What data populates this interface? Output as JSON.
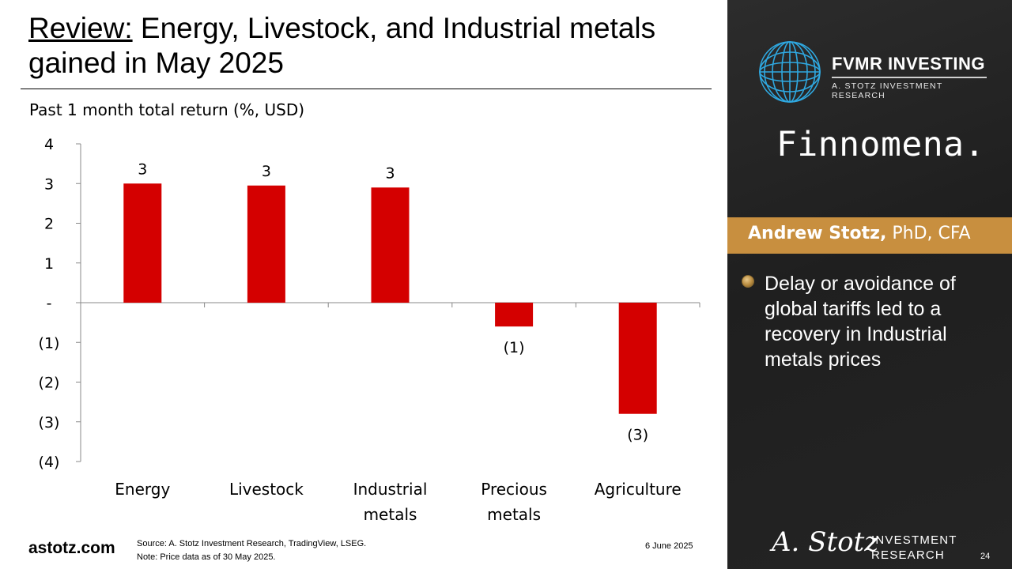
{
  "slide": {
    "title_lead": "Review:",
    "title_rest": " Energy, Livestock, and Industrial metals gained in May 2025",
    "site": "astotz.com",
    "source": "Source: A. Stotz Investment Research, TradingView, LSEG.",
    "note": "Note: Price data as of 30 May 2025.",
    "date": "6 June 2025",
    "page_number": "24"
  },
  "sidebar": {
    "brand_name": "FVMR INVESTING",
    "brand_sub": "A. STOTZ INVESTMENT RESEARCH",
    "partner": "Finnomena.",
    "author_name": "Andrew Stotz,",
    "author_title": " PhD, CFA",
    "bullet": "Delay or avoidance of global tariffs led to a recovery in Industrial metals prices",
    "signature": "A. Stotz",
    "ir_line1": "INVESTMENT",
    "ir_line2": "RESEARCH"
  },
  "colors": {
    "bar": "#d40000",
    "accent": "#c88f3f",
    "panel_bg": "#252525"
  },
  "chart_data": {
    "type": "bar",
    "title": "Past 1 month total return (%, USD)",
    "categories": [
      [
        "Energy"
      ],
      [
        "Livestock"
      ],
      [
        "Industrial",
        "metals"
      ],
      [
        "Precious",
        "metals"
      ],
      [
        "Agriculture"
      ]
    ],
    "values": [
      3.0,
      2.95,
      2.9,
      -0.6,
      -2.8
    ],
    "data_labels": [
      "3",
      "3",
      "3",
      "(1)",
      "(3)"
    ],
    "ylim": [
      -4,
      4
    ],
    "yticks": [
      4,
      3,
      2,
      1,
      0,
      -1,
      -2,
      -3,
      -4
    ],
    "ytick_labels": [
      "4",
      "3",
      "2",
      "1",
      "-",
      "(1)",
      "(2)",
      "(3)",
      "(4)"
    ],
    "grid": false
  }
}
